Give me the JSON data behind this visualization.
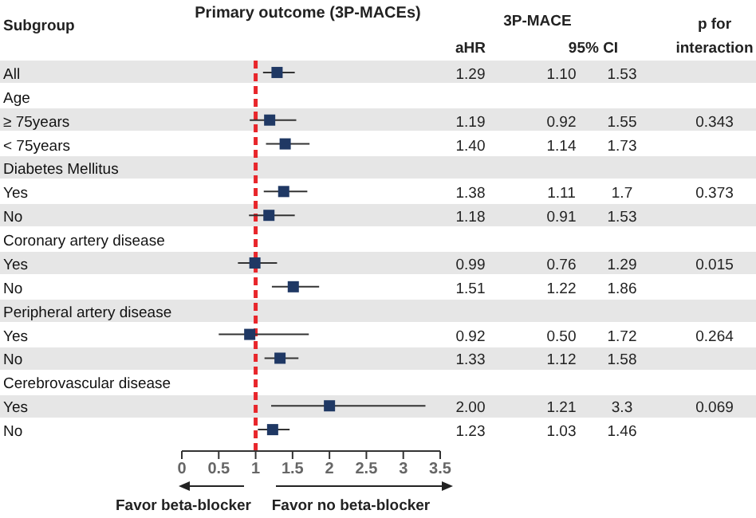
{
  "chart_data": {
    "type": "scatter",
    "orientation": "horizontal",
    "title": "Primary outcome (3P-MACEs)",
    "categories": [
      "All",
      "Age",
      "≥ 75years",
      "< 75years",
      "Diabetes Mellitus",
      "Yes",
      "No",
      "Coronary artery disease",
      "Yes",
      "No",
      "Peripheral artery disease",
      "Yes",
      "No",
      "Cerebrovascular disease",
      "Yes",
      "No"
    ],
    "values": [
      1.29,
      null,
      1.19,
      1.4,
      null,
      1.38,
      1.18,
      null,
      0.99,
      1.51,
      null,
      0.92,
      1.33,
      null,
      2.0,
      1.23
    ],
    "errors": [
      [
        1.1,
        1.53
      ],
      null,
      [
        0.92,
        1.55
      ],
      [
        1.14,
        1.73
      ],
      null,
      [
        1.11,
        1.7
      ],
      [
        0.91,
        1.53
      ],
      null,
      [
        0.76,
        1.29
      ],
      [
        1.22,
        1.86
      ],
      null,
      [
        0.5,
        1.72
      ],
      [
        1.12,
        1.58
      ],
      null,
      [
        1.21,
        3.3
      ],
      [
        1.03,
        1.46
      ]
    ],
    "value_labels": [
      "1.29",
      null,
      "1.19",
      "1.40",
      null,
      "1.38",
      "1.18",
      null,
      "0.99",
      "1.51",
      null,
      "0.92",
      "1.33",
      null,
      "2.00",
      "1.23"
    ],
    "color": "#1f3864",
    "marker": "square",
    "xlim": [
      0,
      3.5
    ],
    "xticks": [
      0,
      0.5,
      1,
      1.5,
      2,
      2.5,
      3,
      3.5
    ],
    "ref_lines": [
      {
        "axis": "x",
        "value": 1,
        "color": "#e8262b",
        "line_style": "dashed"
      }
    ],
    "annotations": [
      "Subgroup",
      "3P-MACE",
      "aHR",
      "95% CI",
      "p for",
      "interaction",
      "Favor beta-blocker",
      "Favor no beta-blocker",
      "0.343",
      "0.373",
      "0.015",
      "0.264",
      "0.069",
      "1.10",
      "1.53",
      "0.92",
      "1.55",
      "1.14",
      "1.73",
      "1.11",
      "1.7",
      "0.91",
      "1.53",
      "0.76",
      "1.29",
      "1.22",
      "1.86",
      "0.50",
      "1.72",
      "1.12",
      "1.58",
      "1.21",
      "3.3",
      "1.03",
      "1.46"
    ]
  }
}
